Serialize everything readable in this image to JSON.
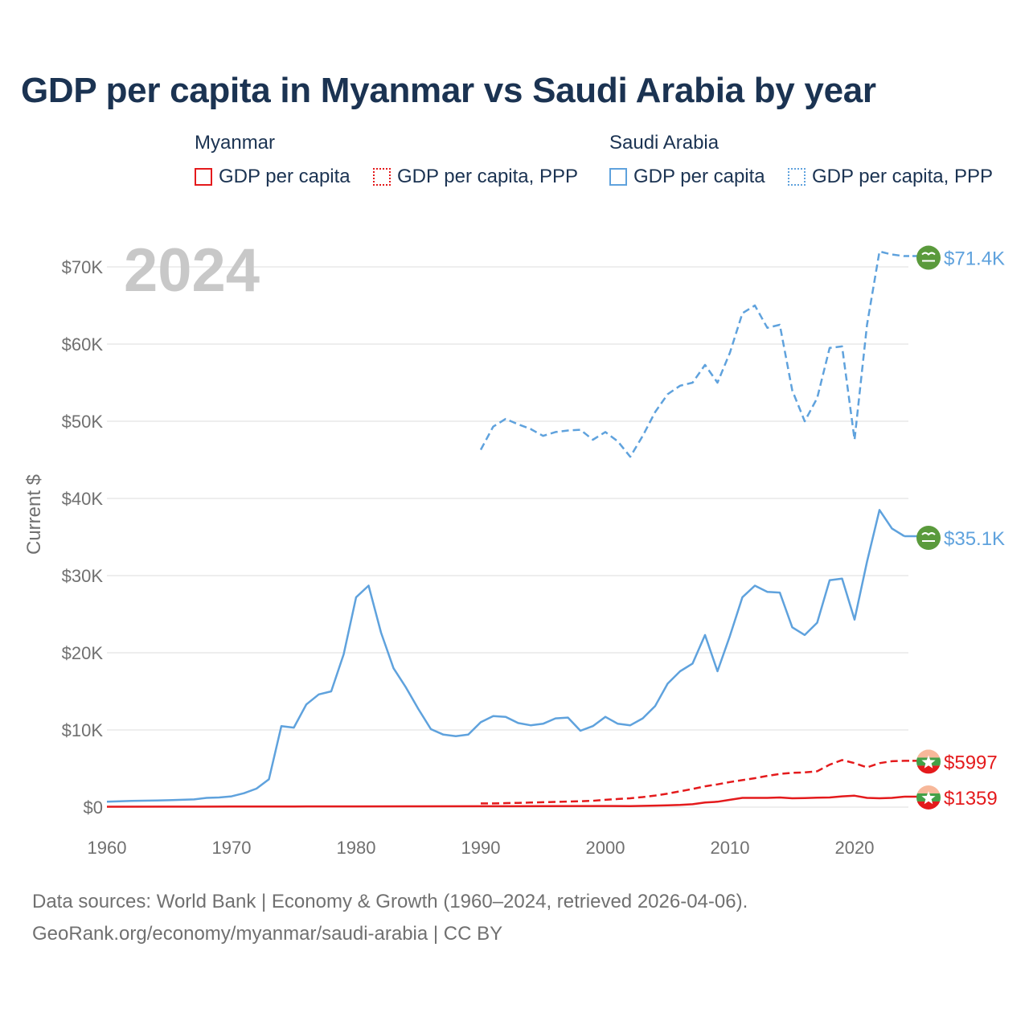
{
  "chart_data": {
    "type": "line",
    "title": "GDP per capita in Myanmar vs Saudi Arabia by year",
    "year_overlay": "2024",
    "ylabel": "Current $",
    "xlabel": "",
    "xlim": [
      1960,
      2024
    ],
    "ylim": [
      0,
      72000
    ],
    "x_ticks": [
      1960,
      1970,
      1980,
      1990,
      2000,
      2010,
      2020
    ],
    "x_tick_labels": [
      "1960",
      "1970",
      "1980",
      "1990",
      "2000",
      "2010",
      "2020"
    ],
    "y_ticks": [
      0,
      10000,
      20000,
      30000,
      40000,
      50000,
      60000,
      70000
    ],
    "y_tick_labels": [
      "$0",
      "$10K",
      "$20K",
      "$30K",
      "$40K",
      "$50K",
      "$60K",
      "$70K"
    ],
    "legend": {
      "groups": [
        {
          "title": "Myanmar",
          "entries": [
            "GDP per capita",
            "GDP per capita, PPP"
          ]
        },
        {
          "title": "Saudi Arabia",
          "entries": [
            "GDP per capita",
            "GDP per capita, PPP"
          ]
        }
      ]
    },
    "series": [
      {
        "name": "Saudi Arabia GDP per capita, PPP",
        "country": "Saudi Arabia",
        "style": "dashed",
        "color": "#5fa2dd",
        "end_label": "$71.4K",
        "points": [
          [
            1990,
            46300
          ],
          [
            1991,
            49300
          ],
          [
            1992,
            50300
          ],
          [
            1993,
            49600
          ],
          [
            1994,
            49000
          ],
          [
            1995,
            48100
          ],
          [
            1996,
            48600
          ],
          [
            1997,
            48800
          ],
          [
            1998,
            48900
          ],
          [
            1999,
            47600
          ],
          [
            2000,
            48600
          ],
          [
            2001,
            47400
          ],
          [
            2002,
            45400
          ],
          [
            2003,
            48100
          ],
          [
            2004,
            51200
          ],
          [
            2005,
            53500
          ],
          [
            2006,
            54600
          ],
          [
            2007,
            55000
          ],
          [
            2008,
            57300
          ],
          [
            2009,
            55000
          ],
          [
            2010,
            58900
          ],
          [
            2011,
            64000
          ],
          [
            2012,
            65000
          ],
          [
            2013,
            62100
          ],
          [
            2014,
            62500
          ],
          [
            2015,
            54000
          ],
          [
            2016,
            50000
          ],
          [
            2017,
            53000
          ],
          [
            2018,
            59500
          ],
          [
            2019,
            59700
          ],
          [
            2020,
            47600
          ],
          [
            2021,
            62500
          ],
          [
            2022,
            72000
          ],
          [
            2023,
            71600
          ],
          [
            2024,
            71400
          ]
        ]
      },
      {
        "name": "Saudi Arabia GDP per capita",
        "country": "Saudi Arabia",
        "style": "solid",
        "color": "#5fa2dd",
        "end_label": "$35.1K",
        "points": [
          [
            1960,
            700
          ],
          [
            1961,
            750
          ],
          [
            1962,
            800
          ],
          [
            1963,
            830
          ],
          [
            1964,
            850
          ],
          [
            1965,
            900
          ],
          [
            1966,
            950
          ],
          [
            1967,
            1000
          ],
          [
            1968,
            1200
          ],
          [
            1969,
            1250
          ],
          [
            1970,
            1400
          ],
          [
            1971,
            1800
          ],
          [
            1972,
            2400
          ],
          [
            1973,
            3600
          ],
          [
            1974,
            10500
          ],
          [
            1975,
            10300
          ],
          [
            1976,
            13300
          ],
          [
            1977,
            14600
          ],
          [
            1978,
            15000
          ],
          [
            1979,
            19800
          ],
          [
            1980,
            27200
          ],
          [
            1981,
            28700
          ],
          [
            1982,
            22600
          ],
          [
            1983,
            18000
          ],
          [
            1984,
            15500
          ],
          [
            1985,
            12700
          ],
          [
            1986,
            10100
          ],
          [
            1987,
            9400
          ],
          [
            1988,
            9200
          ],
          [
            1989,
            9400
          ],
          [
            1990,
            11000
          ],
          [
            1991,
            11800
          ],
          [
            1992,
            11700
          ],
          [
            1993,
            10900
          ],
          [
            1994,
            10600
          ],
          [
            1995,
            10800
          ],
          [
            1996,
            11500
          ],
          [
            1997,
            11600
          ],
          [
            1998,
            9900
          ],
          [
            1999,
            10500
          ],
          [
            2000,
            11700
          ],
          [
            2001,
            10800
          ],
          [
            2002,
            10600
          ],
          [
            2003,
            11500
          ],
          [
            2004,
            13100
          ],
          [
            2005,
            16000
          ],
          [
            2006,
            17600
          ],
          [
            2007,
            18600
          ],
          [
            2008,
            22300
          ],
          [
            2009,
            17600
          ],
          [
            2010,
            22200
          ],
          [
            2011,
            27200
          ],
          [
            2012,
            28700
          ],
          [
            2013,
            27900
          ],
          [
            2014,
            27800
          ],
          [
            2015,
            23300
          ],
          [
            2016,
            22300
          ],
          [
            2017,
            23900
          ],
          [
            2018,
            29400
          ],
          [
            2019,
            29600
          ],
          [
            2020,
            24300
          ],
          [
            2021,
            31800
          ],
          [
            2022,
            38500
          ],
          [
            2023,
            36100
          ],
          [
            2024,
            35100
          ]
        ]
      },
      {
        "name": "Myanmar GDP per capita, PPP",
        "country": "Myanmar",
        "style": "dashed",
        "color": "#e41a1c",
        "end_label": "$5997",
        "points": [
          [
            1990,
            480
          ],
          [
            1991,
            480
          ],
          [
            1992,
            520
          ],
          [
            1993,
            550
          ],
          [
            1994,
            590
          ],
          [
            1995,
            640
          ],
          [
            1996,
            680
          ],
          [
            1997,
            720
          ],
          [
            1998,
            760
          ],
          [
            1999,
            820
          ],
          [
            2000,
            950
          ],
          [
            2001,
            1050
          ],
          [
            2002,
            1150
          ],
          [
            2003,
            1300
          ],
          [
            2004,
            1500
          ],
          [
            2005,
            1750
          ],
          [
            2006,
            2050
          ],
          [
            2007,
            2350
          ],
          [
            2008,
            2700
          ],
          [
            2009,
            2950
          ],
          [
            2010,
            3250
          ],
          [
            2011,
            3500
          ],
          [
            2012,
            3750
          ],
          [
            2013,
            4050
          ],
          [
            2014,
            4300
          ],
          [
            2015,
            4450
          ],
          [
            2016,
            4500
          ],
          [
            2017,
            4650
          ],
          [
            2018,
            5500
          ],
          [
            2019,
            6100
          ],
          [
            2020,
            5700
          ],
          [
            2021,
            5150
          ],
          [
            2022,
            5700
          ],
          [
            2023,
            5950
          ],
          [
            2024,
            5997
          ]
        ]
      },
      {
        "name": "Myanmar GDP per capita",
        "country": "Myanmar",
        "style": "solid",
        "color": "#e41a1c",
        "end_label": "$1359",
        "points": [
          [
            1960,
            50
          ],
          [
            1965,
            60
          ],
          [
            1970,
            70
          ],
          [
            1975,
            80
          ],
          [
            1980,
            90
          ],
          [
            1985,
            100
          ],
          [
            1990,
            110
          ],
          [
            1995,
            120
          ],
          [
            2000,
            150
          ],
          [
            2002,
            140
          ],
          [
            2004,
            200
          ],
          [
            2005,
            230
          ],
          [
            2006,
            280
          ],
          [
            2007,
            380
          ],
          [
            2008,
            600
          ],
          [
            2009,
            700
          ],
          [
            2010,
            950
          ],
          [
            2011,
            1200
          ],
          [
            2012,
            1200
          ],
          [
            2013,
            1200
          ],
          [
            2014,
            1250
          ],
          [
            2015,
            1150
          ],
          [
            2016,
            1180
          ],
          [
            2017,
            1230
          ],
          [
            2018,
            1250
          ],
          [
            2019,
            1400
          ],
          [
            2020,
            1480
          ],
          [
            2021,
            1200
          ],
          [
            2022,
            1150
          ],
          [
            2023,
            1200
          ],
          [
            2024,
            1359
          ]
        ]
      }
    ]
  },
  "footer": {
    "sources": "Data sources: World Bank | Economy & Growth (1960–2024, retrieved 2026-04-06).",
    "credit": "GeoRank.org/economy/myanmar/saudi-arabia | CC BY"
  }
}
